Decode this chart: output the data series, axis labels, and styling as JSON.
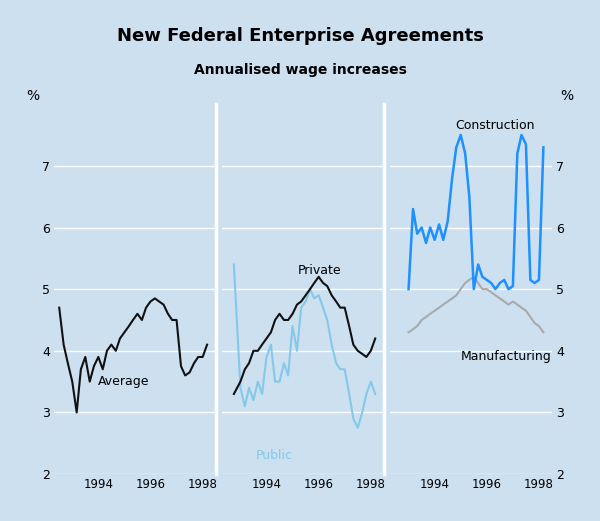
{
  "title": "New Federal Enterprise Agreements",
  "subtitle": "Annualised wage increases",
  "background_color": "#cce0f0",
  "ylim": [
    2,
    8
  ],
  "yticks": [
    2,
    3,
    4,
    5,
    6,
    7
  ],
  "ylabel_left": "%",
  "ylabel_right": "%",
  "average_x": [
    1992.5,
    1992.67,
    1992.83,
    1993.0,
    1993.17,
    1993.33,
    1993.5,
    1993.67,
    1993.83,
    1994.0,
    1994.17,
    1994.33,
    1994.5,
    1994.67,
    1994.83,
    1995.0,
    1995.17,
    1995.33,
    1995.5,
    1995.67,
    1995.83,
    1996.0,
    1996.17,
    1996.33,
    1996.5,
    1996.67,
    1996.83,
    1997.0,
    1997.17,
    1997.33,
    1997.5,
    1997.67,
    1997.83,
    1998.0,
    1998.17
  ],
  "average_y": [
    4.7,
    4.1,
    3.8,
    3.5,
    3.0,
    3.7,
    3.9,
    3.5,
    3.75,
    3.9,
    3.7,
    4.0,
    4.1,
    4.0,
    4.2,
    4.3,
    4.4,
    4.5,
    4.6,
    4.5,
    4.7,
    4.8,
    4.85,
    4.8,
    4.75,
    4.6,
    4.5,
    4.5,
    3.75,
    3.6,
    3.65,
    3.8,
    3.9,
    3.9,
    4.1
  ],
  "private_x": [
    1992.75,
    1993.0,
    1993.17,
    1993.33,
    1993.5,
    1993.67,
    1993.83,
    1994.0,
    1994.17,
    1994.33,
    1994.5,
    1994.67,
    1994.83,
    1995.0,
    1995.17,
    1995.33,
    1995.5,
    1995.67,
    1995.83,
    1996.0,
    1996.17,
    1996.33,
    1996.5,
    1996.67,
    1996.83,
    1997.0,
    1997.17,
    1997.33,
    1997.5,
    1997.67,
    1997.83,
    1998.0,
    1998.17
  ],
  "private_y": [
    3.3,
    3.5,
    3.7,
    3.8,
    4.0,
    4.0,
    4.1,
    4.2,
    4.3,
    4.5,
    4.6,
    4.5,
    4.5,
    4.6,
    4.75,
    4.8,
    4.9,
    5.0,
    5.1,
    5.2,
    5.1,
    5.05,
    4.9,
    4.8,
    4.7,
    4.7,
    4.4,
    4.1,
    4.0,
    3.95,
    3.9,
    4.0,
    4.2
  ],
  "public_x": [
    1992.75,
    1993.0,
    1993.17,
    1993.33,
    1993.5,
    1993.67,
    1993.83,
    1994.0,
    1994.17,
    1994.33,
    1994.5,
    1994.67,
    1994.83,
    1995.0,
    1995.17,
    1995.33,
    1995.5,
    1995.67,
    1995.83,
    1996.0,
    1996.17,
    1996.33,
    1996.5,
    1996.67,
    1996.83,
    1997.0,
    1997.17,
    1997.33,
    1997.5,
    1997.67,
    1997.83,
    1998.0,
    1998.17
  ],
  "public_y": [
    5.4,
    3.4,
    3.1,
    3.4,
    3.2,
    3.5,
    3.3,
    3.9,
    4.1,
    3.5,
    3.5,
    3.8,
    3.6,
    4.4,
    4.0,
    4.7,
    4.8,
    5.0,
    4.85,
    4.9,
    4.7,
    4.5,
    4.1,
    3.8,
    3.7,
    3.7,
    3.3,
    2.9,
    2.75,
    3.0,
    3.3,
    3.5,
    3.3
  ],
  "construction_x": [
    1993.0,
    1993.17,
    1993.33,
    1993.5,
    1993.67,
    1993.83,
    1994.0,
    1994.17,
    1994.33,
    1994.5,
    1994.67,
    1994.83,
    1995.0,
    1995.17,
    1995.33,
    1995.5,
    1995.67,
    1995.83,
    1996.0,
    1996.17,
    1996.33,
    1996.5,
    1996.67,
    1996.83,
    1997.0,
    1997.17,
    1997.33,
    1997.5,
    1997.67,
    1997.83,
    1998.0,
    1998.17
  ],
  "construction_y": [
    5.0,
    6.3,
    5.9,
    6.0,
    5.75,
    6.0,
    5.8,
    6.05,
    5.8,
    6.1,
    6.8,
    7.3,
    7.5,
    7.2,
    6.5,
    5.0,
    5.4,
    5.2,
    5.15,
    5.1,
    5.0,
    5.1,
    5.15,
    5.0,
    5.05,
    7.2,
    7.5,
    7.35,
    5.15,
    5.1,
    5.15,
    7.3
  ],
  "manufacturing_x": [
    1993.0,
    1993.17,
    1993.33,
    1993.5,
    1993.67,
    1993.83,
    1994.0,
    1994.17,
    1994.33,
    1994.5,
    1994.67,
    1994.83,
    1995.0,
    1995.17,
    1995.33,
    1995.5,
    1995.67,
    1995.83,
    1996.0,
    1996.17,
    1996.33,
    1996.5,
    1996.67,
    1996.83,
    1997.0,
    1997.17,
    1997.33,
    1997.5,
    1997.67,
    1997.83,
    1998.0,
    1998.17
  ],
  "manufacturing_y": [
    4.3,
    4.35,
    4.4,
    4.5,
    4.55,
    4.6,
    4.65,
    4.7,
    4.75,
    4.8,
    4.85,
    4.9,
    5.0,
    5.1,
    5.15,
    5.2,
    5.1,
    5.0,
    5.0,
    4.95,
    4.9,
    4.85,
    4.8,
    4.75,
    4.8,
    4.75,
    4.7,
    4.65,
    4.55,
    4.45,
    4.4,
    4.3
  ],
  "color_average": "#111111",
  "color_private": "#111111",
  "color_public": "#85c8e8",
  "color_construction": "#1e90ff",
  "color_manufacturing": "#aaaaaa",
  "panel_xlim": [
    1992.3,
    1998.5
  ],
  "xticks": [
    1994,
    1996,
    1998
  ]
}
